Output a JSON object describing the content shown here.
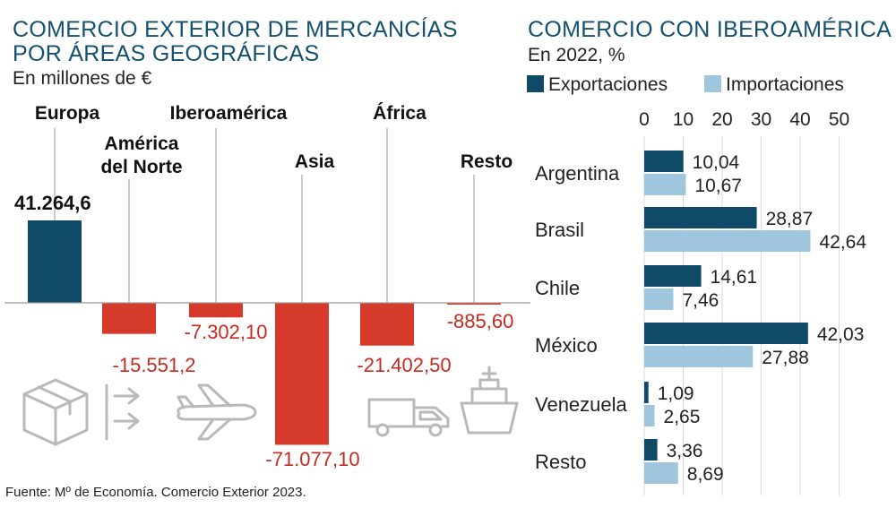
{
  "colors": {
    "title": "#14506f",
    "positive": "#0f4a66",
    "negative": "#d63a2a",
    "negative_label": "#c62a1f",
    "export": "#0f4a66",
    "import": "#9fc6dc",
    "icon": "#b9b9b9"
  },
  "icons": [
    "box-icon",
    "double-arrow-icon",
    "airplane-icon",
    "truck-icon",
    "ship-icon"
  ],
  "source": "Fuente: Mº de Economía. Comercio Exterior 2023.",
  "chart_data": [
    {
      "type": "bar",
      "title": "COMERCIO EXTERIOR DE MERCANCÍAS POR ÁREAS GEOGRÁFICAS",
      "title_lines": [
        "COMERCIO EXTERIOR DE MERCANCÍAS",
        "POR ÁREAS GEOGRÁFICAS"
      ],
      "subtitle": "En millones de €",
      "categories": [
        "Europa",
        "América del Norte",
        "Iberoamérica",
        "Asia",
        "África",
        "Resto"
      ],
      "category_lines": [
        [
          "Europa"
        ],
        [
          "América",
          "del Norte"
        ],
        [
          "Iberoamérica"
        ],
        [
          "Asia"
        ],
        [
          "África"
        ],
        [
          "Resto"
        ]
      ],
      "values": [
        41264.6,
        -15551.2,
        -7302.1,
        -71077.1,
        -21402.5,
        -885.6
      ],
      "value_labels": [
        "41.264,6",
        "-15.551,2",
        "-7.302,10",
        "-71.077,10",
        "-21.402,50",
        "-885,60"
      ],
      "grid": false
    },
    {
      "type": "bar",
      "orientation": "horizontal",
      "title": "COMERCIO CON IBEROAMÉRICA",
      "subtitle": "En 2022, %",
      "categories": [
        "Argentina",
        "Brasil",
        "Chile",
        "México",
        "Venezuela",
        "Resto"
      ],
      "series": [
        {
          "name": "Exportaciones",
          "values": [
            10.04,
            28.87,
            14.61,
            42.03,
            1.09,
            3.36
          ],
          "labels": [
            "10,04",
            "28,87",
            "14,61",
            "42,03",
            "1,09",
            "3,36"
          ]
        },
        {
          "name": "Importaciones",
          "values": [
            10.67,
            42.64,
            7.46,
            27.88,
            2.65,
            8.69
          ],
          "labels": [
            "10,67",
            "42,64",
            "7,46",
            "27,88",
            "2,65",
            "8,69"
          ]
        }
      ],
      "xticks": [
        0,
        10,
        20,
        30,
        40,
        50
      ],
      "xlim": [
        0,
        50
      ],
      "legend": "top",
      "grid": true
    }
  ]
}
